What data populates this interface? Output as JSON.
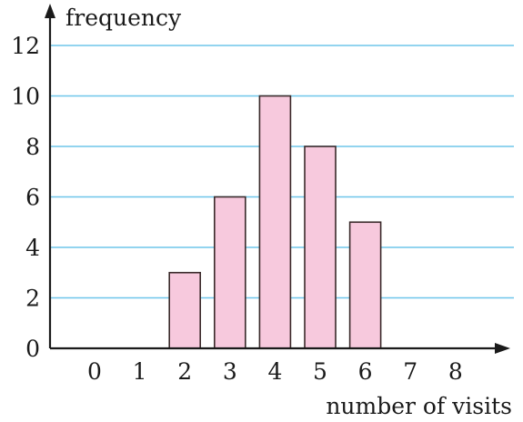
{
  "chart_data": {
    "type": "bar",
    "title": "",
    "xlabel": "number of visits",
    "ylabel": "frequency",
    "x_ticks": [
      "0",
      "1",
      "2",
      "3",
      "4",
      "5",
      "6",
      "7",
      "8"
    ],
    "y_ticks": [
      "0",
      "2",
      "4",
      "6",
      "8",
      "10",
      "12"
    ],
    "ylim": [
      0,
      12
    ],
    "grid": true,
    "categories": [
      "2",
      "3",
      "4",
      "5",
      "6"
    ],
    "values": [
      3,
      6,
      10,
      8,
      5
    ],
    "colors": {
      "bar_fill": "#f7c9dd",
      "bar_stroke": "#3a2a2a",
      "grid": "#6ec6ea",
      "axis": "#1a1a1a"
    }
  }
}
